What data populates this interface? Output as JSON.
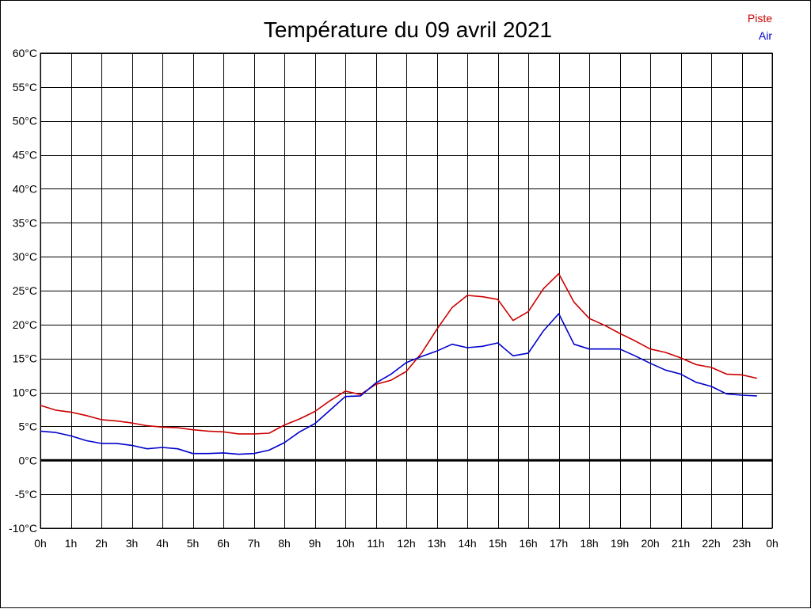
{
  "chart_data": {
    "type": "line",
    "title": "Température du 09 avril 2021",
    "xlabel": "",
    "ylabel": "",
    "x_ticks": [
      "0h",
      "1h",
      "2h",
      "3h",
      "4h",
      "5h",
      "6h",
      "7h",
      "8h",
      "9h",
      "10h",
      "11h",
      "12h",
      "13h",
      "14h",
      "15h",
      "16h",
      "17h",
      "18h",
      "19h",
      "20h",
      "21h",
      "22h",
      "23h",
      "0h"
    ],
    "y_ticks": [
      "-10°C",
      "-5°C",
      "0°C",
      "5°C",
      "10°C",
      "15°C",
      "20°C",
      "25°C",
      "30°C",
      "35°C",
      "40°C",
      "45°C",
      "50°C",
      "55°C",
      "60°C"
    ],
    "xlim": [
      0,
      24
    ],
    "ylim": [
      -10,
      60
    ],
    "grid": true,
    "legend_position": "top-right",
    "series": [
      {
        "name": "Piste",
        "color": "#cc0000",
        "x": [
          0,
          0.5,
          1,
          1.5,
          2,
          2.5,
          3,
          3.5,
          4,
          4.5,
          5,
          5.5,
          6,
          6.5,
          7,
          7.5,
          8,
          8.5,
          9,
          9.5,
          10,
          10.5,
          11,
          11.5,
          12,
          12.5,
          13,
          13.5,
          14,
          14.5,
          15,
          15.5,
          16,
          16.5,
          17,
          17.5,
          18,
          18.5,
          19,
          19.5,
          20,
          20.5,
          21,
          21.5,
          22,
          22.5,
          23,
          23.5
        ],
        "values": [
          8.1,
          7.4,
          7.1,
          6.6,
          6.0,
          5.8,
          5.5,
          5.1,
          4.9,
          4.8,
          4.5,
          4.3,
          4.2,
          3.9,
          3.9,
          4.0,
          5.2,
          6.1,
          7.2,
          8.8,
          10.2,
          9.7,
          11.2,
          11.8,
          13.1,
          15.8,
          19.3,
          22.5,
          24.3,
          24.1,
          23.7,
          20.6,
          21.9,
          25.3,
          27.5,
          23.3,
          20.9,
          19.9,
          18.7,
          17.6,
          16.4,
          15.9,
          15.1,
          14.1,
          13.7,
          12.7,
          12.6,
          12.1
        ]
      },
      {
        "name": "Air",
        "color": "#0000cc",
        "x": [
          0,
          0.5,
          1,
          1.5,
          2,
          2.5,
          3,
          3.5,
          4,
          4.5,
          5,
          5.5,
          6,
          6.5,
          7,
          7.5,
          8,
          8.5,
          9,
          9.5,
          10,
          10.5,
          11,
          11.5,
          12,
          12.5,
          13,
          13.5,
          14,
          14.5,
          15,
          15.5,
          16,
          16.5,
          17,
          17.5,
          18,
          18.5,
          19,
          19.5,
          20,
          20.5,
          21,
          21.5,
          22,
          22.5,
          23,
          23.5
        ],
        "values": [
          4.3,
          4.1,
          3.6,
          2.9,
          2.5,
          2.5,
          2.2,
          1.7,
          1.9,
          1.7,
          1.0,
          1.0,
          1.1,
          0.9,
          1.0,
          1.5,
          2.6,
          4.2,
          5.4,
          7.4,
          9.4,
          9.5,
          11.4,
          12.7,
          14.4,
          15.3,
          16.1,
          17.1,
          16.6,
          16.8,
          17.3,
          15.4,
          15.8,
          19.1,
          21.6,
          17.1,
          16.4,
          16.4,
          16.4,
          15.4,
          14.3,
          13.3,
          12.7,
          11.5,
          10.9,
          9.8,
          9.6,
          9.5
        ]
      }
    ],
    "zero_line": 0
  }
}
